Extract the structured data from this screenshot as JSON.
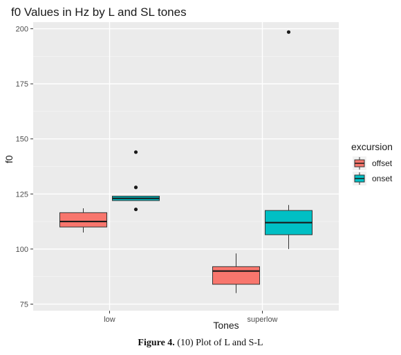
{
  "chart_data": {
    "type": "boxplot",
    "title": "f0 Values in Hz by L and SL tones",
    "xlabel": "Tones",
    "ylabel": "f0",
    "categories": [
      "low",
      "superlow"
    ],
    "ylim": [
      72,
      203
    ],
    "yticks": [
      75,
      100,
      125,
      150,
      175,
      200
    ],
    "grid": true,
    "legend": {
      "title": "excursion",
      "position": "right"
    },
    "series": [
      {
        "name": "offset",
        "color": "#F8766D",
        "boxes": [
          {
            "category": "low",
            "whisker_low": 107.5,
            "q1": 110,
            "median": 112.5,
            "q3": 116.5,
            "whisker_high": 118.5,
            "outliers": []
          },
          {
            "category": "superlow",
            "whisker_low": 80,
            "q1": 84,
            "median": 90,
            "q3": 92,
            "whisker_high": 98,
            "outliers": []
          }
        ]
      },
      {
        "name": "onset",
        "color": "#00BFC4",
        "boxes": [
          {
            "category": "low",
            "whisker_low": 122,
            "q1": 122,
            "median": 123,
            "q3": 124,
            "whisker_high": 124,
            "outliers": [
              118,
              128,
              144
            ]
          },
          {
            "category": "superlow",
            "whisker_low": 100,
            "q1": 106.5,
            "median": 112,
            "q3": 117.5,
            "whisker_high": 120,
            "outliers": [
              198.5
            ]
          }
        ]
      }
    ]
  },
  "caption": {
    "figure_label": "Figure 4.",
    "text": " (10) Plot of L and S-L"
  }
}
